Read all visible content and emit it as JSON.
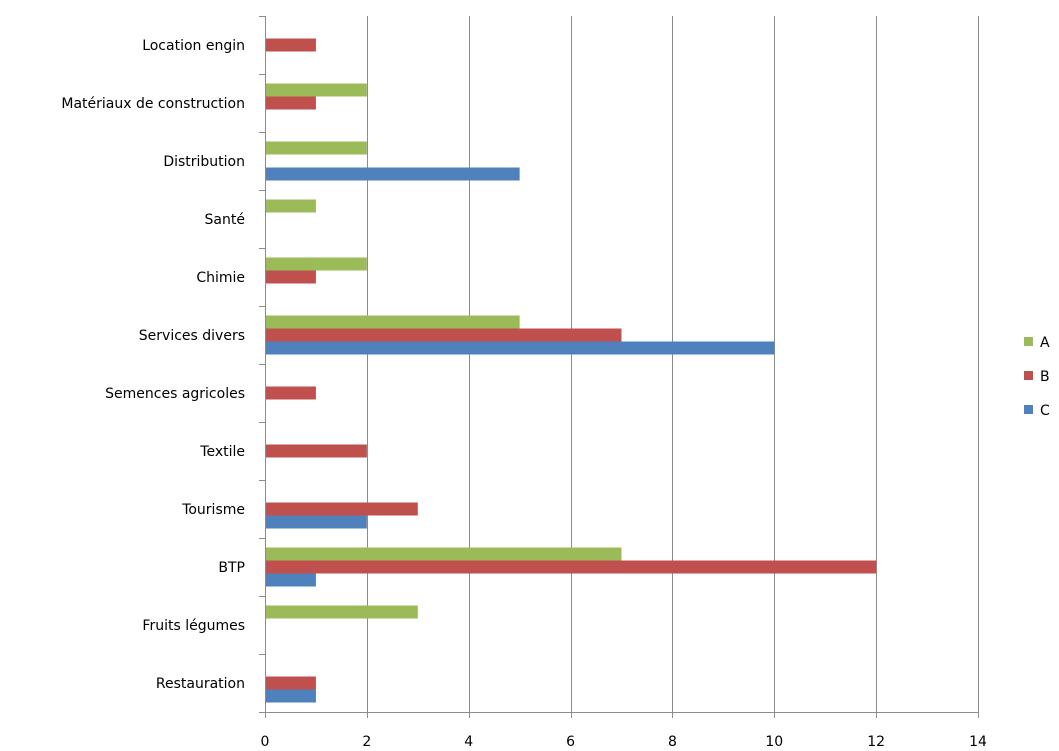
{
  "chart_data": {
    "type": "bar",
    "orientation": "horizontal",
    "categories": [
      "Location engin",
      "Matériaux de construction",
      "Distribution",
      "Santé",
      "Chimie",
      "Services divers",
      "Semences agricoles",
      "Textile",
      "Tourisme",
      "BTP",
      "Fruits légumes",
      "Restauration"
    ],
    "series": [
      {
        "name": "A",
        "color": "#9BBB59",
        "values": [
          0,
          2,
          2,
          1,
          2,
          5,
          0,
          0,
          0,
          7,
          3,
          0
        ]
      },
      {
        "name": "B",
        "color": "#C0504D",
        "values": [
          1,
          1,
          0,
          0,
          1,
          7,
          1,
          2,
          3,
          12,
          0,
          1
        ]
      },
      {
        "name": "C",
        "color": "#4F81BD",
        "values": [
          0,
          0,
          5,
          0,
          0,
          10,
          0,
          0,
          2,
          1,
          0,
          1
        ]
      }
    ],
    "xlim": [
      0,
      14
    ],
    "x_ticks": [
      "0",
      "2",
      "4",
      "6",
      "8",
      "10",
      "12",
      "14"
    ],
    "grid": "vertical",
    "legend": "right",
    "title": "",
    "xlabel": "",
    "ylabel": ""
  }
}
